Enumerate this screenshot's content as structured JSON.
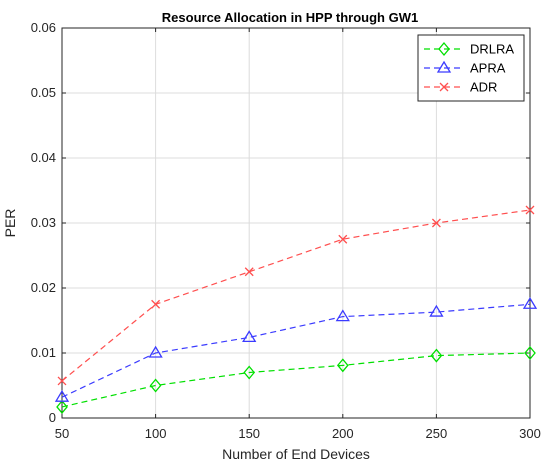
{
  "chart_data": {
    "type": "line",
    "title": "Resource Allocation in HPP through GW1",
    "xlabel": "Number of End Devices",
    "ylabel": "PER",
    "x": [
      50,
      100,
      150,
      200,
      250,
      300
    ],
    "xlim": [
      50,
      300
    ],
    "ylim": [
      0,
      0.06
    ],
    "x_ticks": [
      "50",
      "100",
      "150",
      "200",
      "250",
      "300"
    ],
    "y_ticks": [
      "0",
      "0.01",
      "0.02",
      "0.03",
      "0.04",
      "0.05",
      "0.06"
    ],
    "grid": true,
    "legend_position": "top-right",
    "series": [
      {
        "name": "DRLRA",
        "color": "#00e000",
        "marker": "diamond",
        "values": [
          0.0017,
          0.005,
          0.007,
          0.0081,
          0.0096,
          0.01
        ]
      },
      {
        "name": "APRA",
        "color": "#3b3bff",
        "marker": "triangle",
        "values": [
          0.0032,
          0.01,
          0.0124,
          0.0156,
          0.0163,
          0.0175
        ]
      },
      {
        "name": "ADR",
        "color": "#ff4f4f",
        "marker": "x",
        "values": [
          0.0057,
          0.0175,
          0.0225,
          0.0275,
          0.03,
          0.032
        ]
      }
    ]
  }
}
